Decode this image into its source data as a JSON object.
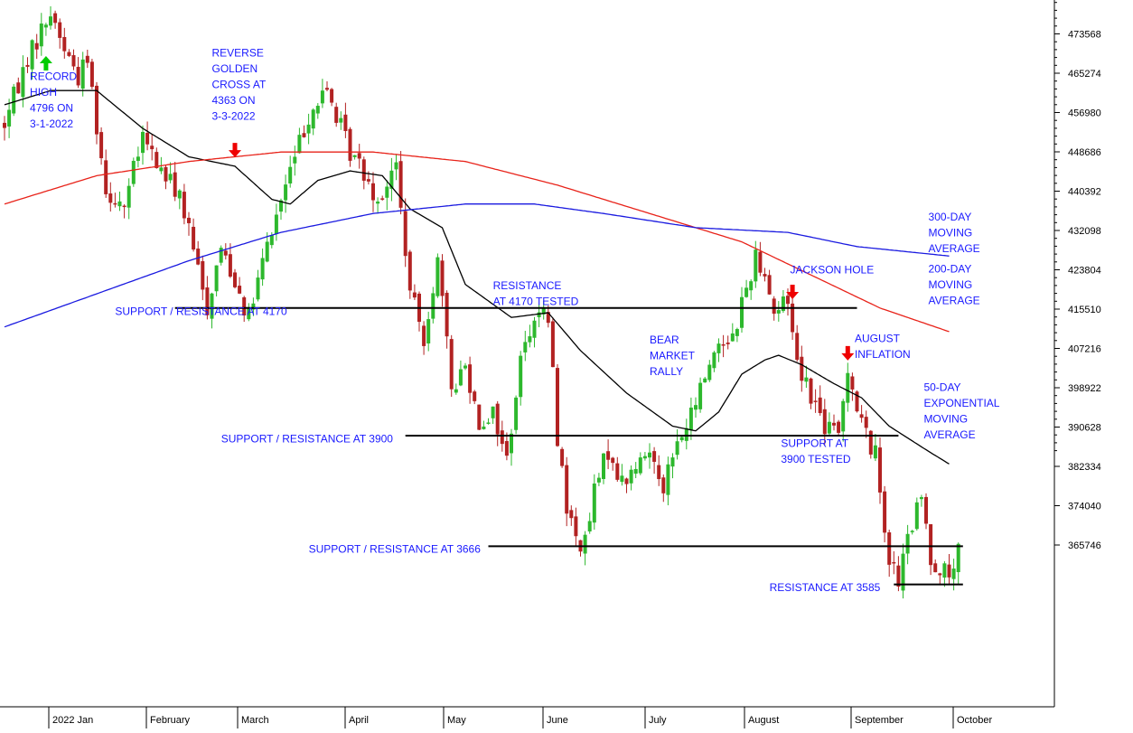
{
  "chart_data": {
    "type": "line",
    "subtype": "candlestick",
    "grid": false,
    "colors": {
      "bullish_candle": "#2db82d",
      "bearish_candle": "#b22222",
      "ma_50_ema": "#000000",
      "ma_200": "#e8231a",
      "ma_300": "#1a1ae0",
      "annotation_text": "#1a1aff",
      "arrow_up": "#00cc00",
      "arrow_down": "#ee0000",
      "support_line": "#000000"
    },
    "y_axis": {
      "side": "right",
      "range": [
        351000,
        481000
      ],
      "ticks": [
        473568,
        465274,
        456980,
        448686,
        440392,
        432098,
        423804,
        415510,
        407216,
        398922,
        390628,
        382334,
        374040,
        365746
      ]
    },
    "x_axis": {
      "months": [
        "2022 Jan",
        "February",
        "March",
        "April",
        "May",
        "June",
        "July",
        "August",
        "September",
        "October"
      ],
      "n_bars": 216
    },
    "candles": {
      "anchors": [
        [
          0,
          4560
        ],
        [
          5,
          4700
        ],
        [
          10,
          4796
        ],
        [
          13,
          4720
        ],
        [
          16,
          4660
        ],
        [
          18,
          4700
        ],
        [
          22,
          4420
        ],
        [
          26,
          4390
        ],
        [
          30,
          4530
        ],
        [
          34,
          4460
        ],
        [
          38,
          4410
        ],
        [
          44,
          4170
        ],
        [
          47,
          4300
        ],
        [
          50,
          4230
        ],
        [
          53,
          4150
        ],
        [
          57,
          4300
        ],
        [
          61,
          4430
        ],
        [
          66,
          4580
        ],
        [
          70,
          4630
        ],
        [
          73,
          4550
        ],
        [
          75,
          4500
        ],
        [
          78,
          4460
        ],
        [
          81,
          4400
        ],
        [
          85,
          4470
        ],
        [
          88,
          4200
        ],
        [
          91,
          4110
        ],
        [
          94,
          4270
        ],
        [
          97,
          4000
        ],
        [
          100,
          4050
        ],
        [
          103,
          3930
        ],
        [
          106,
          3950
        ],
        [
          109,
          3850
        ],
        [
          112,
          4060
        ],
        [
          115,
          4160
        ],
        [
          118,
          4150
        ],
        [
          120,
          3900
        ],
        [
          122,
          3750
        ],
        [
          124,
          3680
        ],
        [
          126,
          3670
        ],
        [
          128,
          3780
        ],
        [
          131,
          3870
        ],
        [
          134,
          3800
        ],
        [
          137,
          3830
        ],
        [
          140,
          3870
        ],
        [
          143,
          3800
        ],
        [
          146,
          3880
        ],
        [
          149,
          3940
        ],
        [
          152,
          4030
        ],
        [
          155,
          4100
        ],
        [
          158,
          4110
        ],
        [
          160,
          4180
        ],
        [
          163,
          4280
        ],
        [
          165,
          4250
        ],
        [
          167,
          4160
        ],
        [
          170,
          4190
        ],
        [
          172,
          4060
        ],
        [
          175,
          3990
        ],
        [
          178,
          3920
        ],
        [
          181,
          3900
        ],
        [
          183,
          4050
        ],
        [
          185,
          3960
        ],
        [
          187,
          3900
        ],
        [
          189,
          3860
        ],
        [
          192,
          3640
        ],
        [
          194,
          3590
        ],
        [
          196,
          3680
        ],
        [
          199,
          3770
        ],
        [
          201,
          3640
        ],
        [
          203,
          3620
        ],
        [
          205,
          3600
        ],
        [
          207,
          3650
        ]
      ],
      "jitter_amplitude": 45
    },
    "series": [
      {
        "name": "50-DAY EXPONENTIAL MOVING AVERAGE",
        "points": [
          [
            0,
            4600
          ],
          [
            10,
            4630
          ],
          [
            20,
            4630
          ],
          [
            30,
            4550
          ],
          [
            40,
            4490
          ],
          [
            50,
            4470
          ],
          [
            58,
            4400
          ],
          [
            62,
            4390
          ],
          [
            68,
            4440
          ],
          [
            75,
            4460
          ],
          [
            82,
            4450
          ],
          [
            88,
            4380
          ],
          [
            95,
            4340
          ],
          [
            100,
            4220
          ],
          [
            110,
            4150
          ],
          [
            118,
            4160
          ],
          [
            125,
            4080
          ],
          [
            135,
            3990
          ],
          [
            145,
            3920
          ],
          [
            150,
            3910
          ],
          [
            155,
            3950
          ],
          [
            160,
            4030
          ],
          [
            165,
            4060
          ],
          [
            168,
            4070
          ],
          [
            173,
            4050
          ],
          [
            180,
            4010
          ],
          [
            186,
            3980
          ],
          [
            192,
            3920
          ],
          [
            200,
            3870
          ],
          [
            205,
            3840
          ]
        ]
      },
      {
        "name": "200-DAY MOVING AVERAGE",
        "points": [
          [
            0,
            4390
          ],
          [
            20,
            4450
          ],
          [
            40,
            4480
          ],
          [
            60,
            4500
          ],
          [
            80,
            4500
          ],
          [
            100,
            4480
          ],
          [
            120,
            4430
          ],
          [
            140,
            4370
          ],
          [
            160,
            4310
          ],
          [
            175,
            4240
          ],
          [
            190,
            4170
          ],
          [
            205,
            4120
          ]
        ]
      },
      {
        "name": "300-DAY MOVING AVERAGE",
        "points": [
          [
            0,
            4130
          ],
          [
            20,
            4200
          ],
          [
            40,
            4270
          ],
          [
            60,
            4330
          ],
          [
            80,
            4370
          ],
          [
            100,
            4390
          ],
          [
            115,
            4390
          ],
          [
            130,
            4370
          ],
          [
            150,
            4340
          ],
          [
            170,
            4330
          ],
          [
            185,
            4300
          ],
          [
            205,
            4280
          ]
        ]
      }
    ],
    "horizontal_lines": [
      {
        "value": 4170,
        "x_from": 37,
        "x_to": 185
      },
      {
        "value": 3900,
        "x_from": 87,
        "x_to": 194
      },
      {
        "value": 3666,
        "x_from": 105,
        "x_to": 208
      },
      {
        "value": 3585,
        "x_from": 193,
        "x_to": 208
      }
    ],
    "arrows": [
      {
        "direction": "up",
        "bar": 9,
        "value": 4686
      },
      {
        "direction": "down",
        "bar": 50,
        "value": 4506
      },
      {
        "direction": "down",
        "bar": 171,
        "value": 4206
      },
      {
        "direction": "down",
        "bar": 183,
        "value": 4076
      }
    ],
    "annotations": [
      {
        "lines": [
          "RECORD",
          "HIGH",
          "4796 ON",
          "3-1-2022"
        ],
        "bar": 5.5,
        "value": 4652
      },
      {
        "lines": [
          "REVERSE",
          "GOLDEN",
          "CROSS AT",
          "4363 ON",
          "3-3-2022"
        ],
        "bar": 45,
        "value": 4702
      },
      {
        "lines": [
          "SUPPORT / RESISTANCE AT 4170"
        ],
        "bar": 24,
        "value": 4155
      },
      {
        "lines": [
          "RESISTANCE",
          "AT 4170 TESTED"
        ],
        "bar": 106,
        "value": 4210
      },
      {
        "lines": [
          "BEAR",
          "MARKET",
          "RALLY"
        ],
        "bar": 140,
        "value": 4095
      },
      {
        "lines": [
          "JACKSON HOLE"
        ],
        "bar": 170.5,
        "value": 4243
      },
      {
        "lines": [
          "AUGUST",
          "INFLATION"
        ],
        "bar": 184.5,
        "value": 4098
      },
      {
        "lines": [
          "SUPPORT / RESISTANCE AT 3900"
        ],
        "bar": 47,
        "value": 3886
      },
      {
        "lines": [
          "SUPPORT AT",
          "3900 TESTED"
        ],
        "bar": 168.5,
        "value": 3876
      },
      {
        "lines": [
          "SUPPORT / RESISTANCE AT 3666"
        ],
        "bar": 66,
        "value": 3652
      },
      {
        "lines": [
          "RESISTANCE AT 3585"
        ],
        "bar": 166,
        "value": 3571
      },
      {
        "lines": [
          "300-DAY",
          "MOVING",
          "AVERAGE"
        ],
        "bar": 200.5,
        "value": 4355
      },
      {
        "lines": [
          "200-DAY",
          "MOVING",
          "AVERAGE"
        ],
        "bar": 200.5,
        "value": 4245
      },
      {
        "lines": [
          "50-DAY",
          "EXPONENTIAL",
          "MOVING",
          "AVERAGE"
        ],
        "bar": 199.5,
        "value": 3995
      }
    ]
  }
}
